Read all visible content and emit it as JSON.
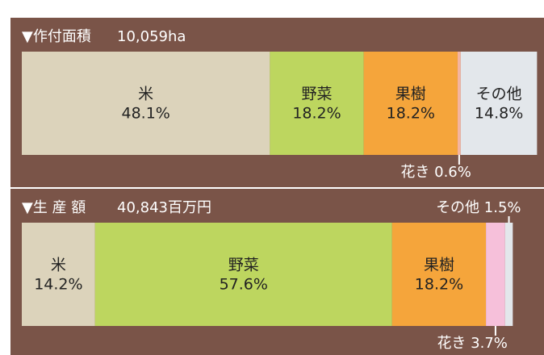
{
  "chart_data": [
    {
      "type": "bar",
      "orientation": "horizontal",
      "stacked": true,
      "title": "▼作付面積",
      "subtitle": "10,059ha",
      "xlim": [
        0,
        100
      ],
      "series": [
        {
          "name": "米",
          "color": "#dcd3bb",
          "values": [
            48.1
          ],
          "value_labels": [
            "48.1%"
          ]
        },
        {
          "name": "野菜",
          "color": "#bdd65f",
          "values": [
            18.2
          ],
          "value_labels": [
            "18.2%"
          ]
        },
        {
          "name": "果樹",
          "color": "#f5a53b",
          "values": [
            18.2
          ],
          "value_labels": [
            "18.2%"
          ]
        },
        {
          "name": "花き",
          "color": "#f4b4a0",
          "values": [
            0.6
          ],
          "value_labels": [
            "0.6%"
          ]
        },
        {
          "name": "その他",
          "color": "#e3e7eb",
          "values": [
            14.8
          ],
          "value_labels": [
            "14.8%"
          ]
        }
      ]
    },
    {
      "type": "bar",
      "orientation": "horizontal",
      "stacked": true,
      "title": "▼生 産 額",
      "subtitle": "40,843百万円",
      "xlim": [
        0,
        100
      ],
      "series": [
        {
          "name": "米",
          "color": "#dcd3bb",
          "values": [
            14.2
          ],
          "value_labels": [
            "14.2%"
          ]
        },
        {
          "name": "野菜",
          "color": "#bdd65f",
          "values": [
            57.6
          ],
          "value_labels": [
            "57.6%"
          ]
        },
        {
          "name": "果樹",
          "color": "#f5a53b",
          "values": [
            18.2
          ],
          "value_labels": [
            "18.2%"
          ]
        },
        {
          "name": "花き",
          "color": "#f6c0da",
          "values": [
            3.7
          ],
          "value_labels": [
            "3.7%"
          ]
        },
        {
          "name": "その他",
          "color": "#e3e7eb",
          "values": [
            1.5
          ],
          "value_labels": [
            "1.5%"
          ]
        }
      ]
    }
  ]
}
